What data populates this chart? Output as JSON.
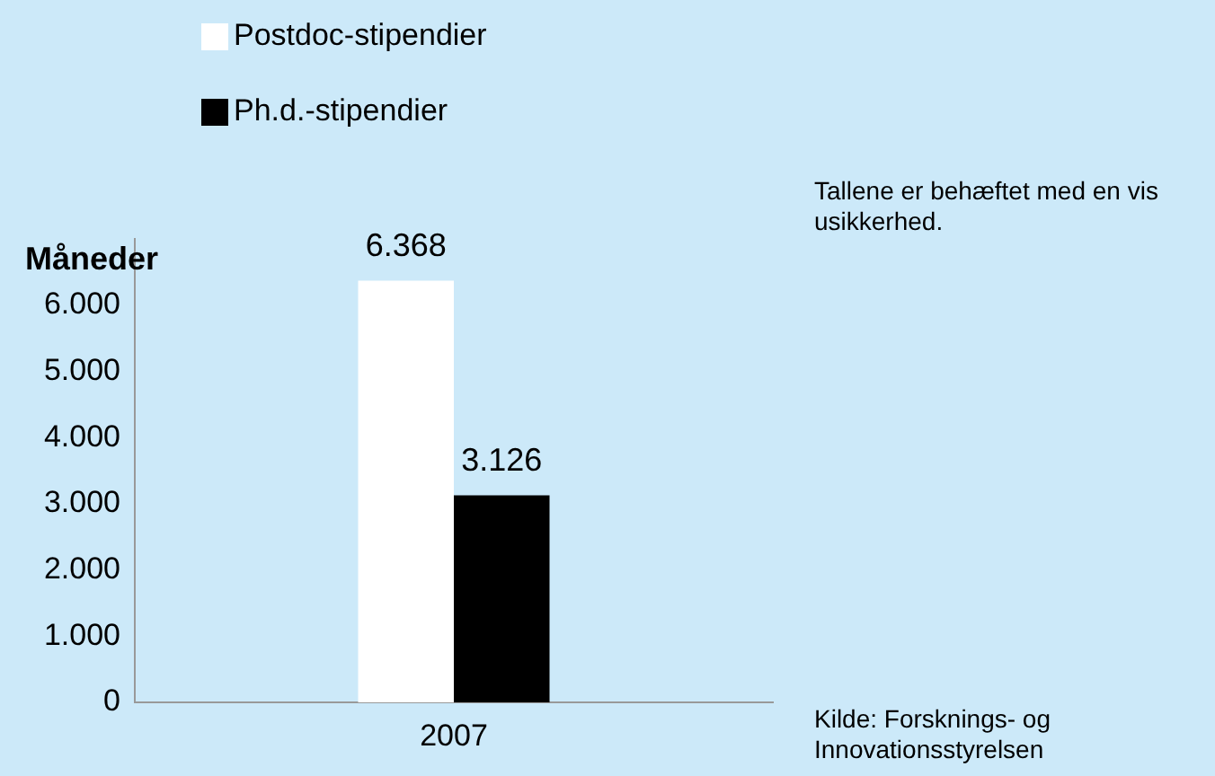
{
  "chart_data": {
    "type": "bar",
    "ylabel": "Måneder",
    "categories": [
      "2007"
    ],
    "series": [
      {
        "name": "Postdoc-stipendier",
        "color": "#ffffff",
        "values": [
          6368
        ],
        "value_labels": [
          "6.368"
        ]
      },
      {
        "name": "Ph.d.-stipendier",
        "color": "#000000",
        "values": [
          3126
        ],
        "value_labels": [
          "3.126"
        ]
      }
    ],
    "ylim": [
      0,
      7000
    ],
    "yticks": [
      {
        "value": 0,
        "label": "0"
      },
      {
        "value": 1000,
        "label": "1.000"
      },
      {
        "value": 2000,
        "label": "2.000"
      },
      {
        "value": 3000,
        "label": "3.000"
      },
      {
        "value": 4000,
        "label": "4.000"
      },
      {
        "value": 5000,
        "label": "5.000"
      },
      {
        "value": 6000,
        "label": "6.000"
      }
    ],
    "grid": false,
    "legend": "top left",
    "annotations": [
      "Tallene er behæftet med en vis usikkerhed.",
      "Kilde: Forsknings- og Innovationsstyrelsen"
    ]
  }
}
